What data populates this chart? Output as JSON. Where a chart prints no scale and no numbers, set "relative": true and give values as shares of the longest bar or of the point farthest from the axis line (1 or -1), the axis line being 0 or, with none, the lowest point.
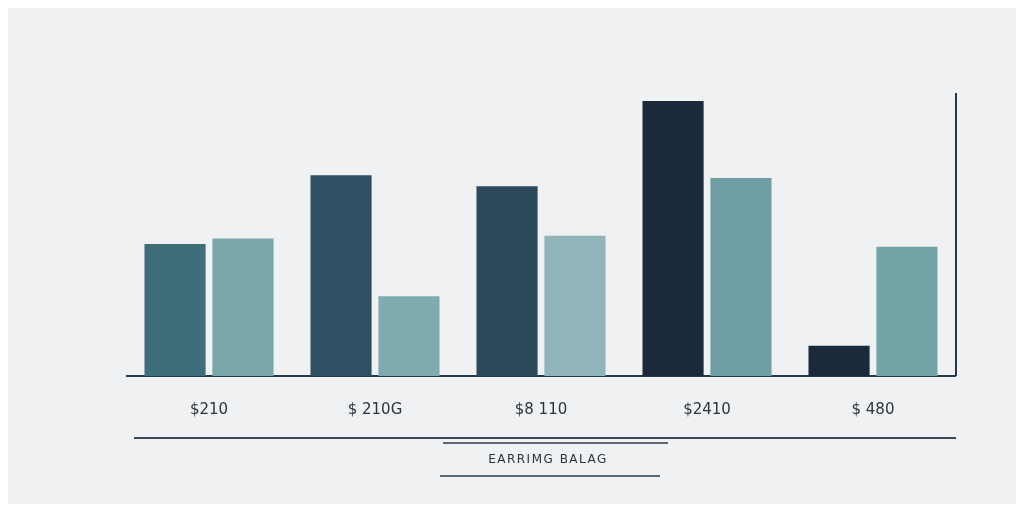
{
  "chart_data": {
    "type": "bar",
    "relative": true,
    "xlabel": "EARRIMG BALAG",
    "categories": [
      "$210",
      "$ 210G",
      "$8 110",
      "$2410",
      "$ 480"
    ],
    "series": [
      {
        "colors": [
          "#3d6e7a",
          "#2f5063",
          "#2c4a5c",
          "#1b2a3b",
          "#1b2a3b"
        ],
        "values": [
          0.48,
          0.73,
          0.69,
          1.0,
          0.11
        ]
      },
      {
        "colors": [
          "#78a6ab",
          "#7eaab0",
          "#8fb5ba",
          "#6e9ea3",
          "#74a3a8"
        ],
        "values": [
          0.5,
          0.29,
          0.51,
          0.72,
          0.47
        ]
      }
    ]
  }
}
